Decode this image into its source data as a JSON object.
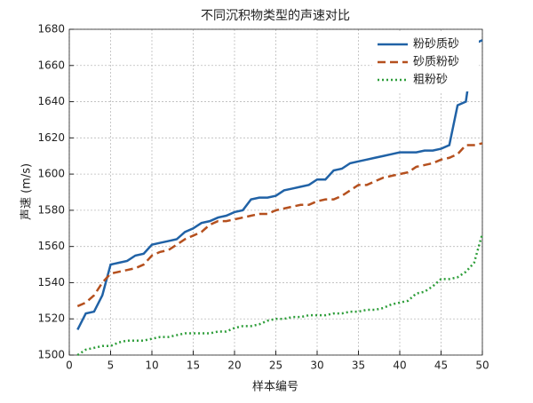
{
  "chart_data": {
    "type": "line",
    "title": "不同沉积物类型的声速对比",
    "xlabel": "样本编号",
    "ylabel": "声速 (m/s)",
    "x": [
      1,
      2,
      3,
      4,
      5,
      6,
      7,
      8,
      9,
      10,
      11,
      12,
      13,
      14,
      15,
      16,
      17,
      18,
      19,
      20,
      21,
      22,
      23,
      24,
      25,
      26,
      27,
      28,
      29,
      30,
      31,
      32,
      33,
      34,
      35,
      36,
      37,
      38,
      39,
      40,
      41,
      42,
      43,
      44,
      45,
      46,
      47,
      48,
      49,
      50
    ],
    "series": [
      {
        "name": "粉砂质砂",
        "color": "#2062a6",
        "linestyle": "solid",
        "values": [
          1514,
          1523,
          1524,
          1533,
          1550,
          1551,
          1552,
          1555,
          1556,
          1561,
          1562,
          1563,
          1564,
          1568,
          1570,
          1573,
          1574,
          1576,
          1577,
          1579,
          1580,
          1586,
          1587,
          1587,
          1588,
          1591,
          1592,
          1593,
          1594,
          1597,
          1597,
          1602,
          1603,
          1606,
          1607,
          1608,
          1609,
          1610,
          1611,
          1612,
          1612,
          1612,
          1613,
          1613,
          1614,
          1616,
          1638,
          1640,
          1672,
          1674
        ]
      },
      {
        "name": "砂质粉砂",
        "color": "#b5501e",
        "linestyle": "dashed",
        "values": [
          1527,
          1529,
          1533,
          1540,
          1545,
          1546,
          1547,
          1548,
          1550,
          1555,
          1557,
          1558,
          1561,
          1564,
          1566,
          1568,
          1572,
          1574,
          1574,
          1575,
          1576,
          1577,
          1578,
          1578,
          1580,
          1581,
          1582,
          1583,
          1583,
          1585,
          1586,
          1586,
          1588,
          1591,
          1594,
          1594,
          1596,
          1598,
          1599,
          1600,
          1601,
          1604,
          1605,
          1606,
          1608,
          1609,
          1611,
          1616,
          1616,
          1617
        ]
      },
      {
        "name": "粗粉砂",
        "color": "#2e9e3a",
        "linestyle": "dotted",
        "values": [
          1500,
          1503,
          1504,
          1505,
          1505,
          1507,
          1508,
          1508,
          1508,
          1509,
          1510,
          1510,
          1511,
          1512,
          1512,
          1512,
          1512,
          1513,
          1513,
          1515,
          1516,
          1516,
          1517,
          1519,
          1520,
          1520,
          1521,
          1521,
          1522,
          1522,
          1522,
          1523,
          1523,
          1524,
          1524,
          1525,
          1525,
          1526,
          1528,
          1529,
          1530,
          1534,
          1535,
          1538,
          1542,
          1542,
          1543,
          1546,
          1551,
          1567
        ]
      }
    ],
    "xlim": [
      0,
      50
    ],
    "xticks": [
      0,
      5,
      10,
      15,
      20,
      25,
      30,
      35,
      40,
      45,
      50
    ],
    "ylim": [
      1500,
      1680
    ],
    "yticks": [
      1500,
      1520,
      1540,
      1560,
      1580,
      1600,
      1620,
      1640,
      1660,
      1680
    ],
    "grid": true,
    "legend": "upper right"
  }
}
